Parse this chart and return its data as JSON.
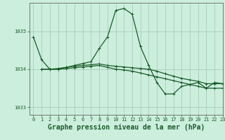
{
  "title": "Graphe pression niveau de la mer (hPa)",
  "background_color": "#cceedd",
  "grid_color": "#aaccbb",
  "line_color": "#1a5c2a",
  "xlim": [
    -0.5,
    23
  ],
  "ylim": [
    1032.8,
    1035.75
  ],
  "yticks": [
    1033,
    1034,
    1035
  ],
  "xticks": [
    0,
    1,
    2,
    3,
    4,
    5,
    6,
    7,
    8,
    9,
    10,
    11,
    12,
    13,
    14,
    15,
    16,
    17,
    18,
    19,
    20,
    21,
    22,
    23
  ],
  "series1_x": [
    0,
    1,
    2,
    3,
    4,
    5,
    6,
    7,
    8,
    9,
    10,
    11,
    12,
    13,
    14,
    15,
    16,
    17,
    18,
    19,
    20,
    21,
    22,
    23
  ],
  "series1_y": [
    1034.85,
    1034.25,
    1034.0,
    1034.0,
    1034.05,
    1034.1,
    1034.15,
    1034.2,
    1034.55,
    1034.85,
    1035.55,
    1035.6,
    1035.45,
    1034.6,
    1034.1,
    1033.65,
    1033.35,
    1033.35,
    1033.55,
    1033.6,
    1033.65,
    1033.5,
    1033.65,
    1033.62
  ],
  "series2_x": [
    1,
    2,
    3,
    4,
    5,
    6,
    7,
    8,
    9,
    10,
    11,
    12,
    13,
    14,
    15,
    16,
    17,
    18,
    19,
    20,
    21,
    22,
    23
  ],
  "series2_y": [
    1034.0,
    1034.0,
    1034.0,
    1034.02,
    1034.04,
    1034.06,
    1034.08,
    1034.1,
    1034.05,
    1034.0,
    1033.98,
    1033.95,
    1033.9,
    1033.85,
    1033.8,
    1033.75,
    1033.7,
    1033.65,
    1033.6,
    1033.55,
    1033.5,
    1033.5,
    1033.5
  ],
  "series3_x": [
    1,
    2,
    3,
    4,
    5,
    6,
    7,
    8,
    9,
    10,
    11,
    12,
    13,
    14,
    15,
    16,
    17,
    18,
    19,
    20,
    21,
    22,
    23
  ],
  "series3_y": [
    1034.0,
    1034.0,
    1034.02,
    1034.05,
    1034.08,
    1034.1,
    1034.12,
    1034.14,
    1034.1,
    1034.08,
    1034.06,
    1034.04,
    1034.02,
    1034.0,
    1033.95,
    1033.88,
    1033.82,
    1033.76,
    1033.72,
    1033.68,
    1033.62,
    1033.62,
    1033.62
  ],
  "marker_size": 3.0,
  "line_width": 0.9,
  "title_fontsize": 7,
  "tick_fontsize": 5,
  "title_color": "#1a5c2a",
  "tick_color": "#1a5c2a",
  "spine_color": "#666666"
}
